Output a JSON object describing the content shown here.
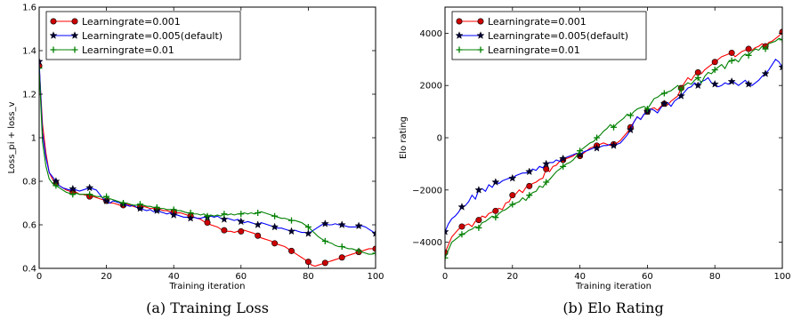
{
  "chart_data": [
    {
      "type": "line",
      "caption": "(a) Training Loss",
      "xlabel": "Training iteration",
      "ylabel": "Loss_pi + loss_v",
      "xlim": [
        0,
        100
      ],
      "ylim": [
        0.4,
        1.6
      ],
      "xticks": [
        0,
        20,
        40,
        60,
        80,
        100
      ],
      "yticks": [
        0.4,
        0.6,
        0.8,
        1.0,
        1.2,
        1.4,
        1.6
      ],
      "legend_position": "top-left",
      "series": [
        {
          "name": "Learningrate=0.001",
          "color": "#ff0000",
          "marker": "circle",
          "markers_every": 5,
          "values": [
            1.33,
            1.06,
            0.93,
            0.84,
            0.81,
            0.79,
            0.78,
            0.77,
            0.76,
            0.755,
            0.75,
            0.75,
            0.74,
            0.74,
            0.735,
            0.73,
            0.73,
            0.725,
            0.72,
            0.715,
            0.71,
            0.7,
            0.7,
            0.695,
            0.69,
            0.69,
            0.695,
            0.69,
            0.685,
            0.68,
            0.68,
            0.685,
            0.68,
            0.675,
            0.675,
            0.67,
            0.67,
            0.665,
            0.665,
            0.66,
            0.66,
            0.655,
            0.655,
            0.65,
            0.645,
            0.64,
            0.635,
            0.63,
            0.625,
            0.615,
            0.61,
            0.6,
            0.595,
            0.59,
            0.58,
            0.575,
            0.57,
            0.57,
            0.565,
            0.57,
            0.57,
            0.575,
            0.57,
            0.565,
            0.56,
            0.55,
            0.54,
            0.535,
            0.53,
            0.525,
            0.515,
            0.51,
            0.505,
            0.5,
            0.49,
            0.48,
            0.47,
            0.46,
            0.45,
            0.44,
            0.43,
            0.415,
            0.41,
            0.415,
            0.42,
            0.425,
            0.43,
            0.435,
            0.44,
            0.445,
            0.45,
            0.455,
            0.46,
            0.465,
            0.47,
            0.475,
            0.48,
            0.485,
            0.49,
            0.49,
            0.49
          ]
        },
        {
          "name": "Learningrate=0.005(default)",
          "color": "#0000ff",
          "marker": "star",
          "markers_every": 5,
          "values": [
            1.35,
            1.02,
            0.91,
            0.84,
            0.82,
            0.8,
            0.78,
            0.77,
            0.765,
            0.76,
            0.765,
            0.76,
            0.755,
            0.76,
            0.765,
            0.77,
            0.765,
            0.76,
            0.74,
            0.72,
            0.71,
            0.7,
            0.71,
            0.705,
            0.7,
            0.695,
            0.69,
            0.685,
            0.69,
            0.68,
            0.675,
            0.67,
            0.665,
            0.67,
            0.66,
            0.665,
            0.66,
            0.655,
            0.65,
            0.655,
            0.645,
            0.645,
            0.64,
            0.635,
            0.635,
            0.63,
            0.635,
            0.63,
            0.63,
            0.635,
            0.635,
            0.64,
            0.635,
            0.64,
            0.63,
            0.625,
            0.63,
            0.625,
            0.62,
            0.625,
            0.615,
            0.61,
            0.615,
            0.61,
            0.605,
            0.6,
            0.61,
            0.605,
            0.6,
            0.595,
            0.59,
            0.585,
            0.585,
            0.58,
            0.575,
            0.57,
            0.575,
            0.57,
            0.565,
            0.565,
            0.56,
            0.57,
            0.58,
            0.59,
            0.6,
            0.605,
            0.6,
            0.6,
            0.605,
            0.6,
            0.6,
            0.595,
            0.59,
            0.59,
            0.59,
            0.595,
            0.595,
            0.59,
            0.58,
            0.57,
            0.56
          ]
        },
        {
          "name": "Learningrate=0.01",
          "color": "#008000",
          "marker": "plus",
          "markers_every": 5,
          "values": [
            1.32,
            0.98,
            0.87,
            0.81,
            0.79,
            0.78,
            0.77,
            0.76,
            0.75,
            0.745,
            0.74,
            0.745,
            0.74,
            0.74,
            0.74,
            0.74,
            0.735,
            0.73,
            0.73,
            0.725,
            0.73,
            0.72,
            0.715,
            0.71,
            0.705,
            0.7,
            0.7,
            0.695,
            0.69,
            0.69,
            0.695,
            0.69,
            0.685,
            0.685,
            0.68,
            0.68,
            0.675,
            0.675,
            0.67,
            0.67,
            0.67,
            0.665,
            0.665,
            0.66,
            0.655,
            0.655,
            0.65,
            0.65,
            0.645,
            0.65,
            0.64,
            0.645,
            0.64,
            0.645,
            0.64,
            0.65,
            0.645,
            0.65,
            0.645,
            0.65,
            0.65,
            0.655,
            0.65,
            0.655,
            0.65,
            0.655,
            0.66,
            0.655,
            0.65,
            0.645,
            0.64,
            0.635,
            0.63,
            0.63,
            0.625,
            0.62,
            0.62,
            0.615,
            0.61,
            0.6,
            0.59,
            0.575,
            0.56,
            0.545,
            0.535,
            0.525,
            0.52,
            0.515,
            0.505,
            0.5,
            0.5,
            0.495,
            0.49,
            0.49,
            0.485,
            0.48,
            0.475,
            0.47,
            0.465,
            0.465,
            0.47
          ]
        }
      ]
    },
    {
      "type": "line",
      "caption": "(b) Elo Rating",
      "xlabel": "Training iteration",
      "ylabel": "Elo rating",
      "xlim": [
        0,
        100
      ],
      "ylim": [
        -5000,
        5000
      ],
      "xticks": [
        0,
        20,
        40,
        60,
        80,
        100
      ],
      "yticks": [
        -4000,
        -2000,
        0,
        2000,
        4000
      ],
      "legend_position": "top-left",
      "series": [
        {
          "name": "Learningrate=0.001",
          "color": "#ff0000",
          "marker": "circle",
          "markers_every": 5,
          "values": [
            -4400,
            -4100,
            -3800,
            -3650,
            -3500,
            -3400,
            -3350,
            -3300,
            -3400,
            -3200,
            -3150,
            -3000,
            -3050,
            -2900,
            -2850,
            -2800,
            -2700,
            -2750,
            -2500,
            -2450,
            -2200,
            -2150,
            -2000,
            -2100,
            -1900,
            -1850,
            -1750,
            -1700,
            -1600,
            -1550,
            -1200,
            -1300,
            -1100,
            -1050,
            -900,
            -850,
            -800,
            -750,
            -700,
            -600,
            -700,
            -600,
            -500,
            -400,
            -350,
            -300,
            -250,
            -200,
            -250,
            -300,
            -250,
            -200,
            -100,
            50,
            200,
            400,
            600,
            800,
            700,
            900,
            1000,
            1100,
            1150,
            1050,
            1200,
            1300,
            1250,
            1400,
            1500,
            1600,
            1900,
            2100,
            2300,
            2200,
            2400,
            2500,
            2450,
            2600,
            2700,
            2800,
            2900,
            3000,
            3100,
            3150,
            3200,
            3250,
            3100,
            3200,
            3300,
            3350,
            3400,
            3350,
            3450,
            3500,
            3600,
            3500,
            3650,
            3700,
            3800,
            3900,
            4050
          ]
        },
        {
          "name": "Learningrate=0.005(default)",
          "color": "#0000ff",
          "marker": "star",
          "markers_every": 5,
          "values": [
            -3600,
            -3300,
            -3100,
            -3000,
            -2850,
            -2650,
            -2600,
            -2450,
            -2200,
            -2350,
            -2000,
            -1950,
            -2050,
            -1800,
            -1900,
            -1700,
            -1750,
            -1650,
            -1600,
            -1550,
            -1550,
            -1450,
            -1400,
            -1350,
            -1350,
            -1300,
            -1200,
            -1250,
            -1100,
            -1150,
            -1000,
            -950,
            -950,
            -850,
            -900,
            -800,
            -750,
            -700,
            -650,
            -600,
            -650,
            -550,
            -500,
            -450,
            -400,
            -400,
            -350,
            -300,
            -300,
            -250,
            -300,
            -250,
            -200,
            -50,
            100,
            300,
            600,
            800,
            700,
            900,
            1000,
            1100,
            1050,
            950,
            1150,
            1300,
            1350,
            1200,
            1400,
            1500,
            1600,
            1750,
            1900,
            1950,
            2100,
            2000,
            2150,
            2200,
            2300,
            2100,
            2050,
            1950,
            2000,
            2100,
            2050,
            2150,
            2100,
            2000,
            2100,
            2200,
            2050,
            2000,
            2100,
            2200,
            2350,
            2450,
            2600,
            2800,
            3000,
            2900,
            2700
          ]
        },
        {
          "name": "Learningrate=0.01",
          "color": "#008000",
          "marker": "plus",
          "markers_every": 5,
          "values": [
            -4600,
            -4300,
            -4000,
            -3900,
            -3800,
            -3700,
            -3650,
            -3550,
            -3500,
            -3400,
            -3450,
            -3250,
            -3200,
            -3100,
            -3000,
            -3050,
            -2900,
            -2800,
            -2750,
            -2650,
            -2550,
            -2500,
            -2450,
            -2300,
            -2400,
            -2200,
            -2100,
            -2050,
            -1850,
            -1900,
            -1700,
            -1600,
            -1450,
            -1300,
            -1200,
            -1100,
            -1000,
            -950,
            -850,
            -700,
            -500,
            -400,
            -300,
            -200,
            -150,
            0,
            100,
            250,
            350,
            500,
            400,
            550,
            650,
            750,
            900,
            850,
            1000,
            1100,
            1150,
            1200,
            1100,
            1300,
            1500,
            1550,
            1650,
            1700,
            1750,
            1800,
            1900,
            2000,
            1850,
            2000,
            2100,
            2050,
            2200,
            2300,
            2100,
            2350,
            2500,
            2450,
            2600,
            2700,
            2800,
            2650,
            2900,
            2950,
            3000,
            2900,
            3100,
            3200,
            3150,
            3300,
            3400,
            3350,
            3500,
            3400,
            3600,
            3650,
            3700,
            3800,
            3750
          ]
        }
      ]
    }
  ]
}
